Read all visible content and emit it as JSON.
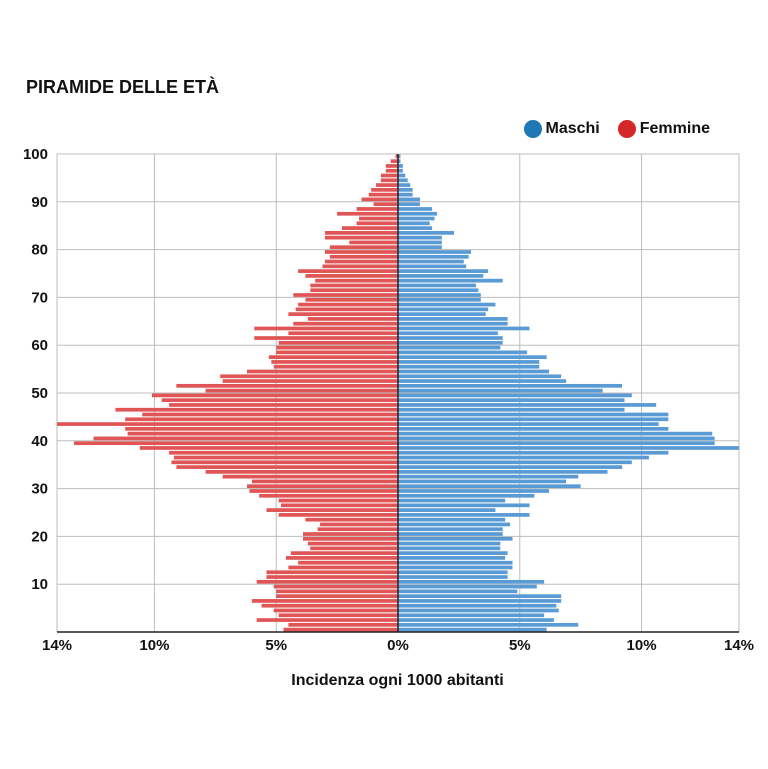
{
  "chart_data": {
    "type": "bar",
    "orientation": "horizontal-pyramid",
    "title": "PIRAMIDE DELLE ETÀ",
    "xlabel": "Incidenza ogni 1000 abitanti",
    "ylabel": "",
    "x_ticks": [
      "14%",
      "10%",
      "5%",
      "0%",
      "5%",
      "10%",
      "14%"
    ],
    "x_tick_values": [
      -14,
      -10,
      -5,
      0,
      5,
      10,
      14
    ],
    "xlim": [
      -14,
      14
    ],
    "y_ticks": [
      "10",
      "20",
      "30",
      "40",
      "50",
      "60",
      "70",
      "80",
      "90",
      "100"
    ],
    "y_tick_values": [
      10,
      20,
      30,
      40,
      50,
      60,
      70,
      80,
      90,
      100
    ],
    "ylim": [
      0,
      100
    ],
    "grid": true,
    "legend_position": "top-right",
    "ages": [
      0,
      1,
      2,
      3,
      4,
      5,
      6,
      7,
      8,
      9,
      10,
      11,
      12,
      13,
      14,
      15,
      16,
      17,
      18,
      19,
      20,
      21,
      22,
      23,
      24,
      25,
      26,
      27,
      28,
      29,
      30,
      31,
      32,
      33,
      34,
      35,
      36,
      37,
      38,
      39,
      40,
      41,
      42,
      43,
      44,
      45,
      46,
      47,
      48,
      49,
      50,
      51,
      52,
      53,
      54,
      55,
      56,
      57,
      58,
      59,
      60,
      61,
      62,
      63,
      64,
      65,
      66,
      67,
      68,
      69,
      70,
      71,
      72,
      73,
      74,
      75,
      76,
      77,
      78,
      79,
      80,
      81,
      82,
      83,
      84,
      85,
      86,
      87,
      88,
      89,
      90,
      91,
      92,
      93,
      94,
      95,
      96,
      97,
      98,
      99
    ],
    "series": [
      {
        "name": "Maschi",
        "color": "#5b9bd5",
        "values": [
          6.1,
          7.4,
          6.4,
          6.0,
          6.6,
          6.5,
          6.7,
          6.7,
          4.9,
          5.7,
          6.0,
          4.5,
          4.5,
          4.7,
          4.7,
          4.4,
          4.5,
          4.2,
          4.2,
          4.7,
          4.3,
          4.3,
          4.6,
          4.4,
          5.4,
          4.0,
          5.4,
          4.4,
          5.6,
          6.2,
          7.5,
          6.9,
          7.4,
          8.6,
          9.2,
          9.6,
          10.3,
          11.1,
          14.0,
          13.0,
          13.0,
          12.9,
          11.1,
          10.7,
          11.1,
          11.1,
          9.3,
          10.6,
          9.3,
          9.6,
          8.4,
          9.2,
          6.9,
          6.7,
          6.2,
          5.8,
          5.8,
          6.1,
          5.3,
          4.2,
          4.3,
          4.3,
          4.1,
          5.4,
          4.5,
          4.5,
          3.6,
          3.7,
          4.0,
          3.4,
          3.4,
          3.3,
          3.2,
          4.3,
          3.5,
          3.7,
          2.8,
          2.7,
          2.9,
          3.0,
          1.8,
          1.8,
          1.8,
          2.3,
          1.4,
          1.3,
          1.5,
          1.6,
          1.4,
          0.9,
          0.9,
          0.6,
          0.6,
          0.5,
          0.4,
          0.3,
          0.2,
          0.2,
          0.1,
          0.1
        ]
      },
      {
        "name": "Femmine",
        "color": "#e05555",
        "values": [
          4.7,
          4.5,
          5.8,
          4.9,
          5.1,
          5.6,
          6.0,
          5.0,
          5.0,
          5.1,
          5.8,
          5.4,
          5.4,
          4.5,
          4.1,
          4.6,
          4.4,
          3.6,
          3.7,
          3.9,
          3.9,
          3.3,
          3.2,
          3.8,
          4.9,
          5.4,
          4.8,
          4.9,
          5.7,
          6.1,
          6.2,
          6.0,
          7.2,
          7.9,
          9.1,
          9.3,
          9.2,
          9.4,
          10.6,
          13.3,
          12.5,
          11.1,
          11.2,
          14.0,
          11.2,
          10.5,
          11.6,
          9.4,
          9.7,
          10.1,
          7.9,
          9.1,
          7.2,
          7.3,
          6.2,
          5.1,
          5.2,
          5.3,
          5.0,
          5.0,
          4.9,
          5.9,
          4.5,
          5.9,
          4.3,
          3.7,
          4.5,
          4.2,
          4.1,
          3.8,
          4.3,
          3.6,
          3.6,
          3.4,
          3.8,
          4.1,
          3.1,
          3.0,
          2.8,
          3.0,
          2.8,
          2.0,
          3.0,
          3.0,
          2.3,
          1.7,
          1.6,
          2.5,
          1.7,
          1.0,
          1.5,
          1.2,
          1.1,
          0.9,
          0.7,
          0.7,
          0.5,
          0.5,
          0.3,
          0.1
        ]
      }
    ]
  }
}
